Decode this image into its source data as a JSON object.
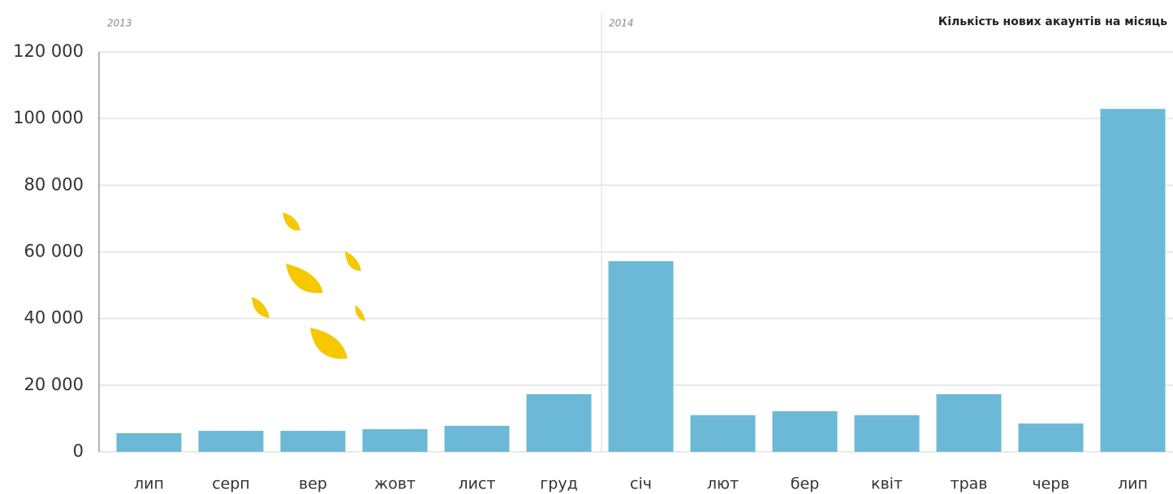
{
  "chart_data": {
    "type": "bar",
    "title": "Кількість нових акаунтів на місяць",
    "year_labels": [
      "2013",
      "2014"
    ],
    "categories": [
      "лип",
      "серп",
      "вер",
      "жовт",
      "лист",
      "груд",
      "січ",
      "лют",
      "бер",
      "квіт",
      "трав",
      "черв",
      "лип"
    ],
    "values": [
      5600,
      6300,
      6300,
      6800,
      7800,
      17300,
      57200,
      11000,
      12200,
      11000,
      17300,
      8500,
      102900
    ],
    "color": "#6bb9d6",
    "ylim": [
      0,
      120000
    ],
    "yticks": [
      0,
      {
        "value": 20000,
        "label": "20 000"
      },
      {
        "value": 40000,
        "label": "40 000"
      },
      {
        "value": 60000,
        "label": "60 000"
      },
      {
        "value": 80000,
        "label": "80 000"
      },
      {
        "value": 100000,
        "label": "100 000"
      },
      {
        "value": 120000,
        "label": "120 000"
      }
    ],
    "grid": true
  }
}
